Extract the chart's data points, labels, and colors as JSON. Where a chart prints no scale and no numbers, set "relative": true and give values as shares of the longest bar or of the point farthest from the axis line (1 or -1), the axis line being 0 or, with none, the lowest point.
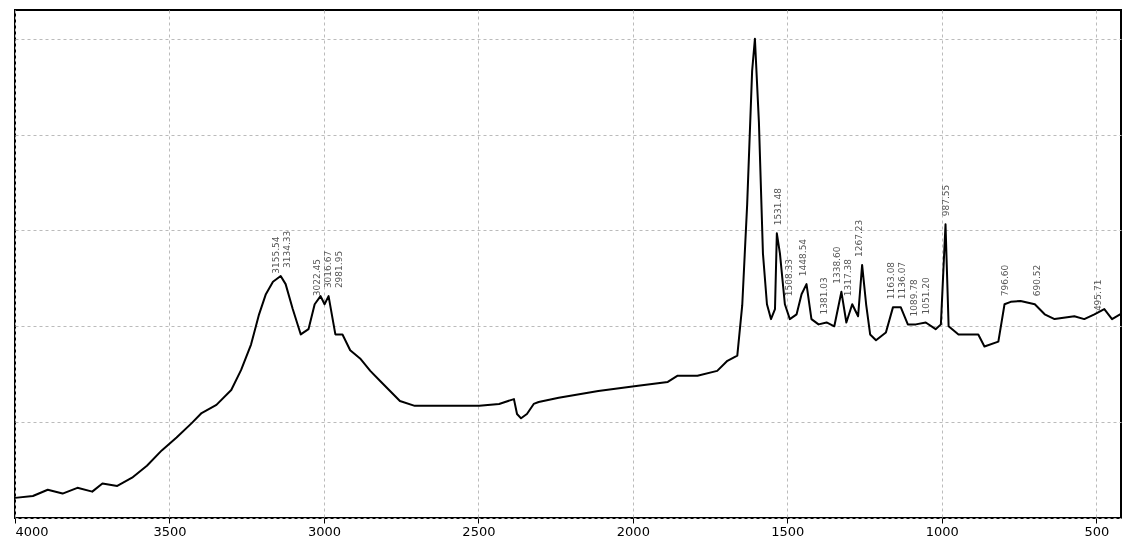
{
  "chart_data": {
    "type": "line",
    "relative": true,
    "grid": true,
    "line_style": "solid",
    "marker": "none",
    "xlim": [
      4000,
      420
    ],
    "xticks": [
      4000,
      3500,
      3000,
      2500,
      2000,
      1500,
      1000,
      500
    ],
    "x": [
      4000,
      3942,
      3894,
      3846,
      3798,
      3750,
      3717,
      3669,
      3621,
      3573,
      3525,
      3477,
      3428,
      3396,
      3348,
      3300,
      3268,
      3236,
      3210,
      3188,
      3165,
      3140,
      3124,
      3101,
      3075,
      3050,
      3030,
      3011,
      2998,
      2985,
      2963,
      2940,
      2915,
      2883,
      2850,
      2818,
      2786,
      2754,
      2706,
      2626,
      2497,
      2433,
      2385,
      2375,
      2362,
      2343,
      2321,
      2305,
      2240,
      2112,
      1983,
      1887,
      1855,
      1791,
      1727,
      1694,
      1662,
      1646,
      1630,
      1614,
      1605,
      1592,
      1579,
      1566,
      1553,
      1540,
      1534,
      1524,
      1508,
      1492,
      1470,
      1454,
      1438,
      1422,
      1399,
      1373,
      1348,
      1325,
      1309,
      1290,
      1271,
      1258,
      1245,
      1232,
      1213,
      1181,
      1158,
      1133,
      1110,
      1084,
      1052,
      1020,
      1003,
      988,
      978,
      946,
      882,
      862,
      817,
      797,
      777,
      745,
      699,
      667,
      635,
      571,
      539,
      506,
      474,
      449,
      423
    ],
    "series": [
      {
        "color": "#000000",
        "values": [
          0.042,
          0.046,
          0.059,
          0.051,
          0.063,
          0.055,
          0.072,
          0.067,
          0.084,
          0.109,
          0.141,
          0.168,
          0.198,
          0.219,
          0.236,
          0.267,
          0.309,
          0.362,
          0.425,
          0.467,
          0.493,
          0.505,
          0.488,
          0.436,
          0.383,
          0.394,
          0.446,
          0.463,
          0.446,
          0.463,
          0.383,
          0.383,
          0.35,
          0.333,
          0.307,
          0.286,
          0.265,
          0.244,
          0.234,
          0.234,
          0.234,
          0.238,
          0.248,
          0.217,
          0.208,
          0.217,
          0.238,
          0.242,
          0.251,
          0.265,
          0.276,
          0.284,
          0.297,
          0.297,
          0.307,
          0.328,
          0.339,
          0.444,
          0.655,
          0.933,
          1,
          0.825,
          0.552,
          0.446,
          0.415,
          0.436,
          0.594,
          0.552,
          0.446,
          0.415,
          0.425,
          0.467,
          0.488,
          0.415,
          0.404,
          0.408,
          0.4,
          0.472,
          0.408,
          0.446,
          0.421,
          0.528,
          0.446,
          0.383,
          0.371,
          0.387,
          0.44,
          0.44,
          0.404,
          0.404,
          0.408,
          0.394,
          0.404,
          0.613,
          0.4,
          0.383,
          0.383,
          0.358,
          0.368,
          0.446,
          0.451,
          0.453,
          0.446,
          0.425,
          0.415,
          0.421,
          0.415,
          0.425,
          0.436,
          0.415,
          0.425
        ]
      }
    ],
    "annotations": [
      {
        "text": "3155.54",
        "x": 3155.54,
        "y": 0.493
      },
      {
        "text": "3134.33",
        "x": 3134.33,
        "y": 0.505
      },
      {
        "text": "3022.45",
        "x": 3022.45,
        "y": 0.446
      },
      {
        "text": "3016.67",
        "x": 3016.67,
        "y": 0.463
      },
      {
        "text": "2981.95",
        "x": 2981.95,
        "y": 0.463
      },
      {
        "text": "1531.48",
        "x": 1531.48,
        "y": 0.594
      },
      {
        "text": "1508.33",
        "x": 1508.33,
        "y": 0.446
      },
      {
        "text": "1448.54",
        "x": 1448.54,
        "y": 0.488
      },
      {
        "text": "1381.03",
        "x": 1381.03,
        "y": 0.408
      },
      {
        "text": "1338.60",
        "x": 1338.6,
        "y": 0.472
      },
      {
        "text": "1317.38",
        "x": 1317.38,
        "y": 0.446
      },
      {
        "text": "1267.23",
        "x": 1267.23,
        "y": 0.528
      },
      {
        "text": "1163.08",
        "x": 1163.08,
        "y": 0.44
      },
      {
        "text": "1136.07",
        "x": 1136.07,
        "y": 0.44
      },
      {
        "text": "1089.78",
        "x": 1089.78,
        "y": 0.404
      },
      {
        "text": "1051.20",
        "x": 1051.2,
        "y": 0.408
      },
      {
        "text": "987.55",
        "x": 987.55,
        "y": 0.613
      },
      {
        "text": "796.60",
        "x": 796.6,
        "y": 0.446
      },
      {
        "text": "690.52",
        "x": 690.52,
        "y": 0.446
      },
      {
        "text": "495.71",
        "x": 495.71,
        "y": 0.415
      }
    ]
  }
}
